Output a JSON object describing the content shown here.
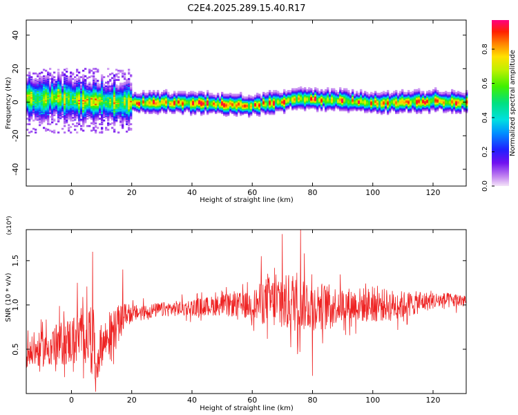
{
  "title": "C2E4.2025.289.15.40.R17",
  "colors": {
    "axis": "#000000",
    "snr_line": "#ee2222",
    "background": "#ffffff"
  },
  "chart_data": [
    {
      "type": "heatmap",
      "title": "",
      "xlabel": "Height of straight line (km)",
      "ylabel": "Frequency (Hz)",
      "xlim": [
        -15,
        131
      ],
      "ylim": [
        -50,
        49
      ],
      "xticks": [
        0,
        20,
        40,
        60,
        80,
        100,
        120
      ],
      "yticks": [
        -40,
        -20,
        0,
        20,
        40
      ],
      "colorbar": {
        "label": "Normalized spectral amplitude",
        "range": [
          0.0,
          0.97
        ],
        "ticks": [
          "0.0",
          "0.2",
          "0.4",
          "0.6",
          "0.8"
        ],
        "tick_values": [
          0.0,
          0.2,
          0.4,
          0.6,
          0.8
        ]
      },
      "ridge": {
        "description_points_x": [
          -15,
          -10,
          -5,
          0,
          5,
          10,
          15,
          20,
          30,
          40,
          50,
          55,
          60,
          65,
          70,
          75,
          80,
          90,
          100,
          110,
          120,
          131
        ],
        "center_y": [
          3,
          2,
          3,
          2,
          1,
          1,
          0,
          0,
          0,
          0,
          -1,
          -1,
          -2,
          0,
          1,
          2,
          2,
          1,
          0,
          0,
          1,
          0
        ]
      }
    },
    {
      "type": "line",
      "title": "",
      "xlabel": "Height of straight line (km)",
      "ylabel": "SNR (10 * v/v)",
      "y_multiplier": "(x10⁴)",
      "xlim": [
        -15,
        131
      ],
      "ylim": [
        0.0,
        1.85
      ],
      "xticks": [
        0,
        20,
        40,
        60,
        80,
        100,
        120
      ],
      "yticks": [
        0.5,
        1.0,
        1.5
      ],
      "ytick_labels": [
        "0.5",
        "1.0",
        "1.5"
      ],
      "series": [
        {
          "color": "#ee2222",
          "envelope_x": [
            -15,
            -10,
            -5,
            0,
            5,
            7,
            8,
            10,
            15,
            18,
            20,
            30,
            40,
            50,
            60,
            65,
            70,
            75,
            80,
            90,
            100,
            110,
            120,
            131
          ],
          "mean": [
            0.45,
            0.5,
            0.55,
            0.6,
            0.65,
            0.7,
            0.3,
            0.55,
            0.75,
            0.9,
            0.9,
            0.95,
            0.97,
            1.0,
            1.0,
            1.05,
            1.0,
            1.05,
            1.0,
            1.0,
            1.0,
            1.0,
            1.05,
            1.05
          ],
          "amplitude": [
            0.2,
            0.25,
            0.3,
            0.35,
            0.4,
            0.5,
            0.3,
            0.3,
            0.3,
            0.15,
            0.12,
            0.1,
            0.12,
            0.15,
            0.2,
            0.35,
            0.4,
            0.45,
            0.35,
            0.25,
            0.25,
            0.2,
            0.12,
            0.1
          ],
          "spikes": [
            {
              "x": 7,
              "y": 1.6
            },
            {
              "x": 76,
              "y": 1.85
            },
            {
              "x": 70,
              "y": 1.8
            },
            {
              "x": 63,
              "y": 1.55
            },
            {
              "x": 17,
              "y": 1.4
            },
            {
              "x": 2,
              "y": 1.25
            },
            {
              "x": 8,
              "y": 0.02
            },
            {
              "x": 80,
              "y": 0.2
            }
          ]
        }
      ]
    }
  ]
}
